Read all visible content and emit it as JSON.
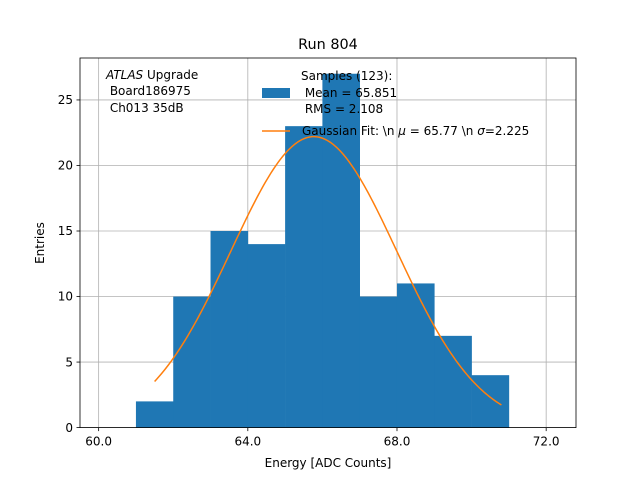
{
  "chart_data": {
    "type": "bar",
    "title": "Run 804",
    "xlabel": "Energy [ADC Counts]",
    "ylabel": "Entries",
    "xlim": [
      59.5,
      72.8
    ],
    "ylim": [
      0,
      28.2
    ],
    "xticks": [
      60,
      64,
      68,
      72
    ],
    "xtick_labels": [
      "60.0",
      "64.0",
      "68.0",
      "72.0"
    ],
    "yticks": [
      0,
      5,
      10,
      15,
      20,
      25
    ],
    "ytick_labels": [
      "0",
      "5",
      "10",
      "15",
      "20",
      "25"
    ],
    "grid": true,
    "histogram": {
      "name": "Samples",
      "color": "#1f77b4",
      "bin_edges": [
        61,
        62,
        63,
        64,
        65,
        66,
        67,
        68,
        69,
        70,
        71
      ],
      "counts": [
        2,
        10,
        15,
        14,
        23,
        27,
        10,
        11,
        7,
        4
      ]
    },
    "fit": {
      "name": "Gaussian Fit",
      "color": "#ff7f0e",
      "mu": 65.77,
      "sigma": 2.225,
      "amplitude": 22.2,
      "x_range": [
        61.5,
        70.8
      ]
    },
    "annotation": {
      "italic": "ATLAS",
      "line1": " Upgrade",
      "line2": " Board186975",
      "line3": " Ch013 35dB"
    },
    "legend": {
      "position": "top-right",
      "hist_label_lines": [
        "Samples (123):",
        " Mean = 65.851",
        " RMS = 2.108"
      ],
      "fit_label": "Gaussian Fit: \\n $\\mu$ = 65.77 \\n $\\sigma$=2.225",
      "fit_label_parts": [
        "Gaussian Fit: \\n ",
        "μ",
        " = 65.77 \\n ",
        "σ",
        "=2.225"
      ]
    }
  }
}
